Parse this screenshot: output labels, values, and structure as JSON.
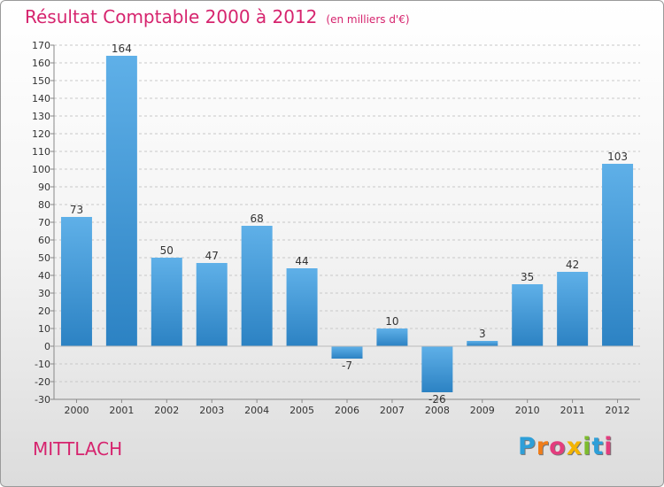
{
  "title": "Résultat Comptable 2000 à 2012",
  "unit": "(en milliers d'€)",
  "city": "MITTLACH",
  "logo": {
    "text": "Proxiti",
    "letters": [
      "P",
      "r",
      "o",
      "x",
      "i",
      "t",
      "i"
    ],
    "colors": [
      "#2e9fd8",
      "#f07d1a",
      "#e33d7e",
      "#f4b400",
      "#7dbb2e",
      "#2e9fd8",
      "#e33d7e"
    ]
  },
  "colors": {
    "bar": "#2c82c3",
    "bar_light": "#5fb0e8",
    "grid": "#c8c8c8",
    "axis_text": "#333333",
    "title": "#d6246e"
  },
  "chart_data": {
    "type": "bar",
    "title": "Résultat Comptable 2000 à 2012",
    "xlabel": "",
    "ylabel": "",
    "categories": [
      "2000",
      "2001",
      "2002",
      "2003",
      "2004",
      "2005",
      "2006",
      "2007",
      "2008",
      "2009",
      "2010",
      "2011",
      "2012"
    ],
    "values": [
      73,
      164,
      50,
      47,
      68,
      44,
      -7,
      10,
      -26,
      3,
      35,
      42,
      103
    ],
    "ylim": [
      -30,
      170
    ],
    "yticks": [
      -30,
      -20,
      -10,
      0,
      10,
      20,
      30,
      40,
      50,
      60,
      70,
      80,
      90,
      100,
      110,
      120,
      130,
      140,
      150,
      160,
      170
    ],
    "grid": true
  }
}
